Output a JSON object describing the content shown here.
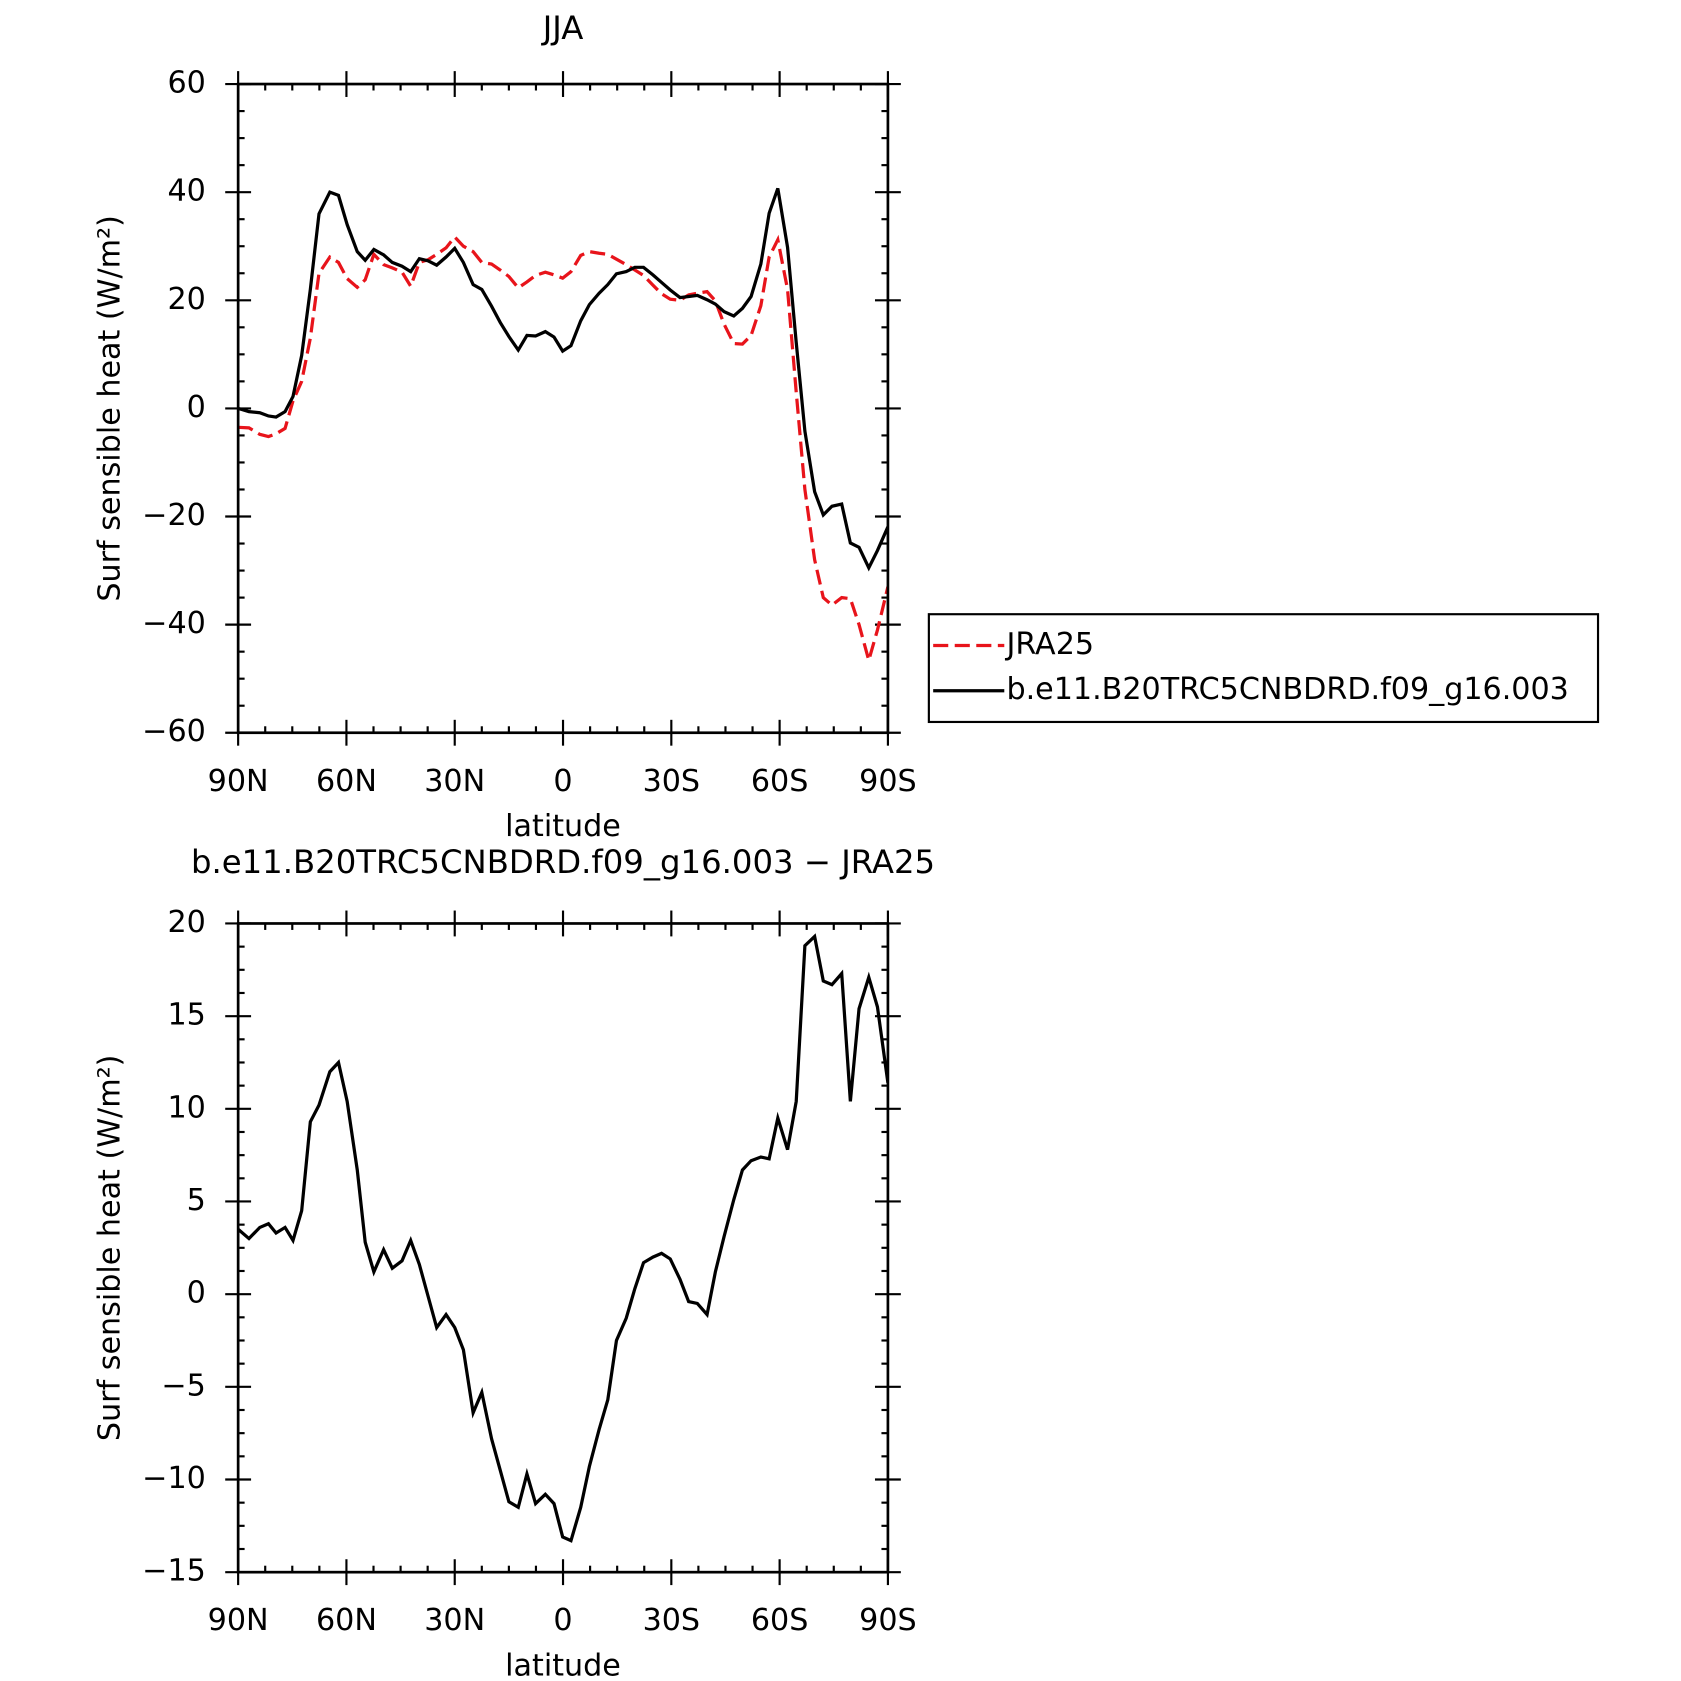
{
  "chart_data": [
    {
      "type": "line",
      "title": "JJA",
      "xlabel": "latitude",
      "ylabel": "Surf sensible heat (W/m²)",
      "x": [
        90,
        87,
        84,
        81.6,
        79.5,
        77,
        74.8,
        72.4,
        70,
        67.6,
        64.6,
        62.2,
        59.8,
        57,
        54.8,
        52.4,
        49.7,
        47.3,
        44.6,
        42.2,
        39.8,
        37.4,
        35,
        32.4,
        30,
        27.6,
        24.9,
        22.5,
        19.8,
        17.4,
        15,
        12.4,
        10,
        7.6,
        4.9,
        2.5,
        0.1,
        -2.2,
        -4.9,
        -7.3,
        -10,
        -12.4,
        -14.8,
        -17.5,
        -19.9,
        -22.3,
        -24.9,
        -27.3,
        -29.7,
        -32.4,
        -34.8,
        -37.2,
        -39.9,
        -42.2,
        -44.6,
        -47.3,
        -49.7,
        -52.1,
        -54.8,
        -57.1,
        -59.5,
        -62.2,
        -64.6,
        -67,
        -69.7,
        -72.1,
        -74.5,
        -77.2,
        -79.6,
        -82,
        -84.7,
        -87.1,
        -90
      ],
      "series": [
        {
          "name": "JRA25",
          "color": "#e8141b",
          "style": "dashed",
          "values": [
            -3.5,
            -3.6,
            -4.8,
            -5.2,
            -4.7,
            -3.7,
            1.4,
            5,
            13,
            25,
            28,
            27,
            24,
            22.4,
            23.8,
            28.5,
            26.6,
            26,
            25.2,
            22.6,
            27,
            27.5,
            28.5,
            29.7,
            31.7,
            30,
            29,
            27,
            26.7,
            25.6,
            24.4,
            22.3,
            23.4,
            24.6,
            25.2,
            24.7,
            24.1,
            25.3,
            28.3,
            29,
            28.7,
            28.5,
            27.6,
            26.6,
            25.6,
            24.6,
            22.8,
            21.2,
            20.2,
            20,
            21,
            21.3,
            21.6,
            19.9,
            15.6,
            12,
            11.9,
            13.5,
            19,
            28,
            31.2,
            22,
            3,
            -15,
            -28,
            -35,
            -36.4,
            -35,
            -35.2,
            -40,
            -46.6,
            -41,
            -33
          ]
        },
        {
          "name": "b.e11.B20TRC5CNBDRD.f09_g16.003",
          "color": "#000000",
          "style": "solid",
          "values": [
            0,
            -0.6,
            -0.8,
            -1.4,
            -1.6,
            -0.6,
            2.2,
            9.8,
            22,
            36,
            40,
            39.4,
            34,
            29,
            27.4,
            29.4,
            28.4,
            27,
            26.3,
            25.3,
            27.7,
            27.3,
            26.5,
            28,
            29.6,
            27,
            22.9,
            22,
            18.9,
            15.9,
            13.3,
            10.8,
            13.5,
            13.4,
            14.2,
            13.2,
            10.6,
            11.6,
            16.2,
            19.2,
            21.3,
            22.9,
            24.9,
            25.3,
            26.1,
            26.1,
            24.7,
            23.3,
            21.9,
            20.5,
            20.7,
            20.9,
            20.1,
            19.3,
            17.9,
            17.1,
            18.5,
            20.7,
            26.7,
            36.1,
            40.7,
            29.8,
            12.2,
            -4.2,
            -15.4,
            -19.7,
            -18.1,
            -17.7,
            -24.9,
            -25.7,
            -29.5,
            -26.3,
            -21.9
          ]
        }
      ],
      "xlim": [
        90,
        -90
      ],
      "xticks": [
        {
          "value": 90,
          "label": "90N"
        },
        {
          "value": 60,
          "label": "60N"
        },
        {
          "value": 30,
          "label": "30N"
        },
        0,
        {
          "value": -30,
          "label": "30S"
        },
        {
          "value": -60,
          "label": "60S"
        },
        {
          "value": -90,
          "label": "90S"
        }
      ],
      "ylim": [
        -60,
        60
      ],
      "yticks": [
        {
          "value": -60,
          "label": "−60"
        },
        {
          "value": -40,
          "label": "−40"
        },
        {
          "value": -20,
          "label": "−20"
        },
        0,
        20,
        40,
        60
      ],
      "grid": false,
      "legend": "right"
    },
    {
      "type": "line",
      "title": "b.e11.B20TRC5CNBDRD.f09_g16.003 − JRA25",
      "xlabel": "latitude",
      "ylabel": "Surf sensible heat (W/m²)",
      "x": [
        90,
        87,
        84,
        81.6,
        79.5,
        77,
        74.8,
        72.4,
        70,
        67.6,
        64.6,
        62.2,
        59.8,
        57,
        54.8,
        52.4,
        49.7,
        47.3,
        44.6,
        42.2,
        39.8,
        37.4,
        35,
        32.4,
        30,
        27.6,
        24.9,
        22.5,
        19.8,
        17.4,
        15,
        12.4,
        10,
        7.6,
        4.9,
        2.5,
        0.1,
        -2.2,
        -4.9,
        -7.3,
        -10,
        -12.4,
        -14.8,
        -17.5,
        -19.9,
        -22.3,
        -24.9,
        -27.3,
        -29.7,
        -32.4,
        -34.8,
        -37.2,
        -39.9,
        -42.2,
        -44.6,
        -47.3,
        -49.7,
        -52.1,
        -54.8,
        -57.1,
        -59.5,
        -62.2,
        -64.6,
        -67,
        -69.7,
        -72.1,
        -74.5,
        -77.2,
        -79.6,
        -82,
        -84.7,
        -87.1,
        -90
      ],
      "series": [
        {
          "color": "#000000",
          "style": "solid",
          "values": [
            3.5,
            3.0,
            3.6,
            3.8,
            3.3,
            3.6,
            2.9,
            4.5,
            9.3,
            10.2,
            12.0,
            12.5,
            10.4,
            6.7,
            2.8,
            1.2,
            2.4,
            1.4,
            1.8,
            2.9,
            1.6,
            -0.1,
            -1.8,
            -1.1,
            -1.8,
            -3.0,
            -6.4,
            -5.3,
            -7.8,
            -9.5,
            -11.2,
            -11.5,
            -9.7,
            -11.3,
            -10.8,
            -11.3,
            -13.1,
            -13.3,
            -11.5,
            -9.3,
            -7.3,
            -5.7,
            -2.5,
            -1.3,
            0.3,
            1.7,
            2.0,
            2.2,
            1.9,
            0.8,
            -0.4,
            -0.5,
            -1.1,
            1.2,
            3.1,
            5.1,
            6.7,
            7.2,
            7.4,
            7.3,
            9.5,
            7.8,
            10.4,
            18.8,
            19.3,
            16.9,
            16.7,
            17.3,
            10.4,
            15.4,
            17.1,
            15.5,
            11.4
          ]
        }
      ],
      "xlim": [
        90,
        -90
      ],
      "xticks": [
        {
          "value": 90,
          "label": "90N"
        },
        {
          "value": 60,
          "label": "60N"
        },
        {
          "value": 30,
          "label": "30N"
        },
        0,
        {
          "value": -30,
          "label": "30S"
        },
        {
          "value": -60,
          "label": "60S"
        },
        {
          "value": -90,
          "label": "90S"
        }
      ],
      "ylim": [
        -15,
        20
      ],
      "yticks": [
        {
          "value": -15,
          "label": "−15"
        },
        {
          "value": -10,
          "label": "−10"
        },
        {
          "value": -5,
          "label": "−5"
        },
        0,
        5,
        10,
        15,
        20
      ],
      "grid": false
    }
  ]
}
